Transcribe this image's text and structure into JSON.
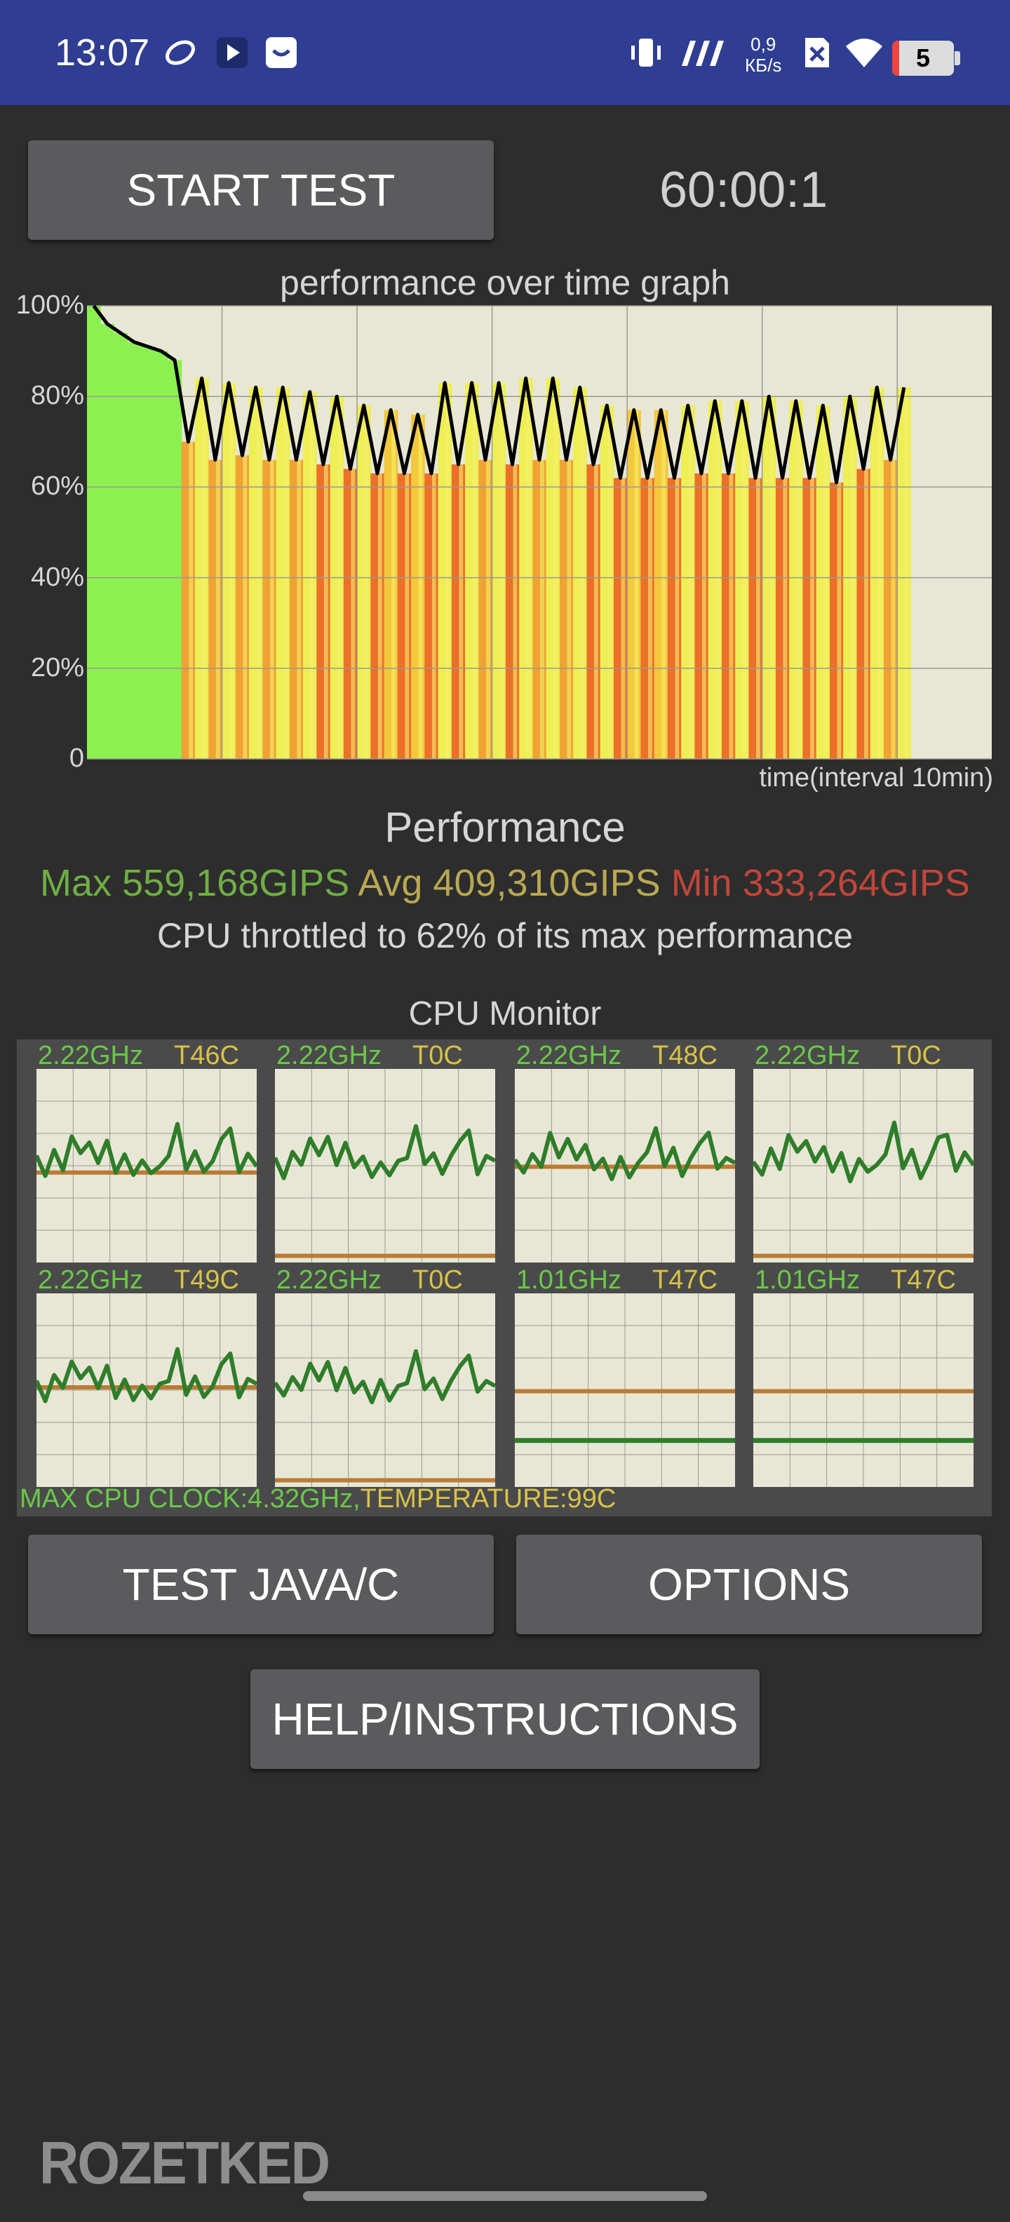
{
  "status_bar": {
    "time": "13:07",
    "speed_value": "0,9",
    "speed_unit": "КБ/s",
    "battery": "5",
    "icons": [
      "leaf-icon",
      "play-store-icon",
      "message-icon",
      "vibrate-icon",
      "signal-icon",
      "no-sim-icon",
      "wifi-icon",
      "battery-icon"
    ]
  },
  "controls": {
    "start_test_label": "START TEST",
    "timer": "60:00:1",
    "test_java_label": "TEST JAVA/C",
    "options_label": "OPTIONS",
    "help_label": "HELP/INSTRUCTIONS"
  },
  "graph": {
    "title": "performance over time graph",
    "x_label": "time(interval 10min)",
    "y_ticks": [
      "100%",
      "80%",
      "60%",
      "40%",
      "20%",
      "0"
    ],
    "colors": {
      "background": "#e8e7d6",
      "line": "#000000",
      "grid": "#9a9a90"
    }
  },
  "chart_data": {
    "type": "line",
    "title": "performance over time graph",
    "xlabel": "time(interval 10min)",
    "ylabel": "",
    "ylim": [
      0,
      100
    ],
    "xlim": [
      0,
      67
    ],
    "y_unit": "%",
    "x_unit": "min",
    "x": [
      0,
      1,
      2,
      3,
      4,
      5,
      6,
      7,
      8,
      9,
      10,
      11,
      12,
      13,
      14,
      15,
      16,
      17,
      18,
      19,
      20,
      21,
      22,
      23,
      24,
      25,
      26,
      27,
      28,
      29,
      30,
      31,
      32,
      33,
      34,
      35,
      36,
      37,
      38,
      39,
      40,
      41,
      42,
      43,
      44,
      45,
      46,
      47,
      48,
      49,
      50,
      51,
      52,
      53,
      54,
      55,
      56,
      57,
      58,
      59,
      60
    ],
    "values": [
      100,
      96,
      94,
      92,
      91,
      90,
      88,
      70,
      84,
      66,
      83,
      67,
      82,
      66,
      82,
      66,
      81,
      65,
      80,
      64,
      78,
      63,
      77,
      63,
      76,
      63,
      83,
      65,
      83,
      66,
      83,
      65,
      84,
      66,
      84,
      66,
      82,
      65,
      78,
      62,
      77,
      62,
      77,
      62,
      78,
      63,
      79,
      63,
      79,
      62,
      80,
      62,
      79,
      62,
      78,
      61,
      80,
      64,
      82,
      66,
      82
    ]
  },
  "performance": {
    "title": "Performance",
    "max": "Max 559,168GIPS",
    "avg": "Avg 409,310GIPS",
    "min": "Min 333,264GIPS",
    "throttle_text": "CPU throttled to 62% of its max performance",
    "colors": {
      "max": "#6fae44",
      "avg": "#b8a852",
      "min": "#c0463a"
    }
  },
  "cpu_monitor": {
    "title": "CPU Monitor",
    "cores": [
      {
        "freq": "2.22GHz",
        "temp": "T46C",
        "active": true,
        "load_level": 0.45
      },
      {
        "freq": "2.22GHz",
        "temp": "T0C",
        "active": true,
        "load_level": 0.02
      },
      {
        "freq": "2.22GHz",
        "temp": "T48C",
        "active": true,
        "load_level": 0.48
      },
      {
        "freq": "2.22GHz",
        "temp": "T0C",
        "active": true,
        "load_level": 0.02
      },
      {
        "freq": "2.22GHz",
        "temp": "T49C",
        "active": true,
        "load_level": 0.5
      },
      {
        "freq": "2.22GHz",
        "temp": "T0C",
        "active": true,
        "load_level": 0.02
      },
      {
        "freq": "1.01GHz",
        "temp": "T47C",
        "active": false,
        "load_level": 0.48
      },
      {
        "freq": "1.01GHz",
        "temp": "T47C",
        "active": false,
        "load_level": 0.48
      }
    ],
    "footer_clock": "MAX CPU CLOCK:4.32GHz,",
    "footer_temp": "TEMPERATURE:99C"
  },
  "watermark": "ROZETKED"
}
